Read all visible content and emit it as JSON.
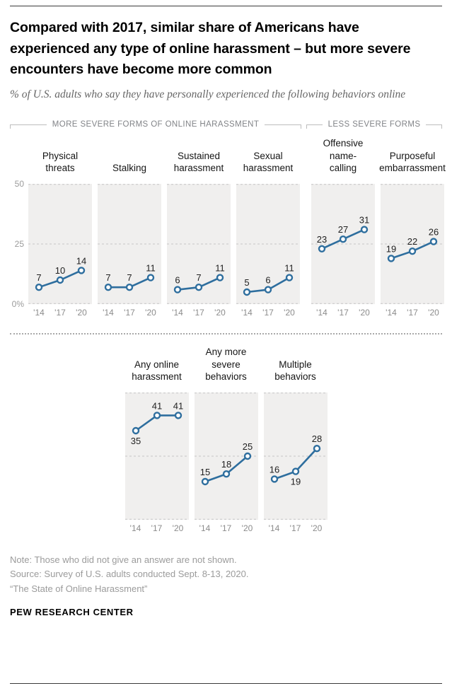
{
  "header": {
    "title": "Compared with 2017, similar share of Americans have experienced any type of online harassment – but more severe encounters have become more common",
    "subtitle": "% of U.S. adults who say they have personally experienced the following behaviors online"
  },
  "sections": {
    "severe_label": "MORE SEVERE FORMS OF ONLINE HARASSMENT",
    "less_severe_label": "LESS SEVERE FORMS"
  },
  "chart_data": {
    "type": "line",
    "x": [
      "'14",
      "'17",
      "'20"
    ],
    "ymax": 50,
    "gridlines": [
      0,
      25,
      50
    ],
    "ytick_labels": [
      {
        "value": 50,
        "label": "50"
      },
      {
        "value": 25,
        "label": "25"
      },
      {
        "value": 0,
        "label": "0%"
      }
    ],
    "line_color": "#2E6E9E",
    "marker_fill": "#ffffff",
    "panel_background": "#f0efee",
    "top_row": [
      {
        "name": "Physical\nthreats",
        "values": [
          7,
          10,
          14
        ],
        "label_pos": [
          "above",
          "above",
          "above"
        ]
      },
      {
        "name": "Stalking",
        "values": [
          7,
          7,
          11
        ],
        "label_pos": [
          "above",
          "above",
          "above"
        ]
      },
      {
        "name": "Sustained\nharassment",
        "values": [
          6,
          7,
          11
        ],
        "label_pos": [
          "above",
          "above",
          "above"
        ]
      },
      {
        "name": "Sexual\nharassment",
        "values": [
          5,
          6,
          11
        ],
        "label_pos": [
          "above",
          "above",
          "above"
        ]
      },
      {
        "name": "Offensive\nname-\ncalling",
        "values": [
          23,
          27,
          31
        ],
        "label_pos": [
          "above",
          "above",
          "above"
        ],
        "group_gap": true
      },
      {
        "name": "Purposeful\nembarrassment",
        "values": [
          19,
          22,
          26
        ],
        "label_pos": [
          "above",
          "above",
          "above"
        ]
      }
    ],
    "bottom_row": [
      {
        "name": "Any online\nharassment",
        "values": [
          35,
          41,
          41
        ],
        "label_pos": [
          "below",
          "above",
          "above"
        ]
      },
      {
        "name": "Any more\nsevere\nbehaviors",
        "values": [
          15,
          18,
          25
        ],
        "label_pos": [
          "above",
          "above",
          "above"
        ]
      },
      {
        "name": "Multiple\nbehaviors",
        "values": [
          16,
          19,
          28
        ],
        "label_pos": [
          "above",
          "below",
          "above"
        ]
      }
    ]
  },
  "notes": [
    "Note: Those who did not give an answer are not shown.",
    "Source: Survey of U.S. adults conducted Sept. 8-13, 2020.",
    "“The State of Online Harassment”"
  ],
  "footer": {
    "label": "PEW RESEARCH CENTER"
  }
}
